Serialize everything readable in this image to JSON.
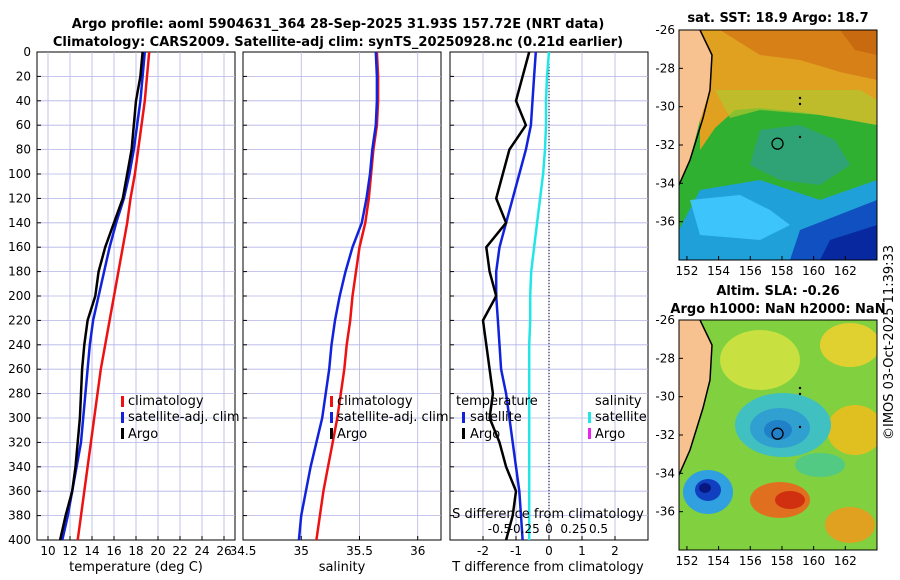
{
  "title_line1": "Argo profile: aoml 5904631_364 28-Sep-2025 31.93S 157.72E (NRT data)",
  "title_line2": "Climatology: CARS2009. Satellite-adj clim: synTS_20250928.nc (0.21d earlier)",
  "credit": "©IMOS 03-Oct-2025 11:39:33",
  "colors": {
    "climatology": "#ee1111",
    "satellite": "#1122dd",
    "argo": "#000000",
    "sat_salinity": "#22e6e6",
    "argo_salinity": "#ee22ee",
    "grid": "#b4b4e6",
    "land": "#f7c190"
  },
  "legend": {
    "climatology": "climatology",
    "satellite_clim": "satellite-adj. clim",
    "argo": "Argo",
    "temperature_hdr": "temperature",
    "salinity_hdr": "salinity",
    "satellite": "satellite",
    "argo_short": "Argo"
  },
  "map1": {
    "title": "sat. SST: 18.9 Argo: 18.7",
    "xticks": [
      "152",
      "154",
      "156",
      "158",
      "160",
      "162"
    ],
    "yticks": [
      "-26",
      "-28",
      "-30",
      "-32",
      "-34",
      "-36"
    ]
  },
  "map2": {
    "title1": "Altim. SLA: -0.26",
    "title2": "Argo h1000: NaN h2000: NaN",
    "xticks": [
      "152",
      "154",
      "156",
      "158",
      "160",
      "162"
    ],
    "yticks": [
      "-26",
      "-28",
      "-30",
      "-32",
      "-34",
      "-36"
    ]
  },
  "chart_data": [
    {
      "type": "line",
      "id": "temperature",
      "xlabel": "temperature (deg C)",
      "ylabel": "",
      "xlim": [
        9,
        27
      ],
      "ylim": [
        400,
        0
      ],
      "xticks": [
        "10",
        "12",
        "14",
        "16",
        "18",
        "20",
        "22",
        "24",
        "26"
      ],
      "yticks": [
        "0",
        "20",
        "40",
        "60",
        "80",
        "100",
        "120",
        "140",
        "160",
        "180",
        "200",
        "220",
        "240",
        "260",
        "280",
        "300",
        "320",
        "340",
        "360",
        "380",
        "400"
      ],
      "depth": [
        0,
        20,
        40,
        60,
        80,
        100,
        120,
        140,
        160,
        180,
        200,
        220,
        240,
        260,
        280,
        300,
        320,
        340,
        360,
        380,
        400
      ],
      "series": [
        {
          "name": "climatology",
          "values": [
            19.2,
            19.0,
            18.8,
            18.5,
            18.2,
            17.9,
            17.5,
            17.2,
            16.8,
            16.4,
            16.0,
            15.6,
            15.2,
            14.8,
            14.5,
            14.2,
            13.9,
            13.6,
            13.3,
            13.0,
            12.7
          ]
        },
        {
          "name": "satellite-adj. clim",
          "values": [
            18.8,
            18.6,
            18.4,
            18.1,
            17.8,
            17.4,
            16.9,
            16.2,
            15.6,
            15.1,
            14.6,
            14.1,
            13.8,
            13.6,
            13.4,
            13.2,
            13.0,
            12.6,
            12.2,
            11.8,
            11.3
          ]
        },
        {
          "name": "Argo",
          "values": [
            18.6,
            18.4,
            18.0,
            17.8,
            17.6,
            17.2,
            16.8,
            16.0,
            15.2,
            14.6,
            14.3,
            13.6,
            13.3,
            13.1,
            13.0,
            12.9,
            12.7,
            12.5,
            12.2,
            11.6,
            11.1
          ]
        }
      ]
    },
    {
      "type": "line",
      "id": "salinity",
      "xlabel": "salinity",
      "ylabel": "",
      "xlim": [
        34.5,
        36.2
      ],
      "ylim": [
        400,
        0
      ],
      "xticks": [
        "34.5",
        "35",
        "35.5",
        "36"
      ],
      "depth": [
        0,
        20,
        40,
        60,
        80,
        100,
        120,
        140,
        160,
        180,
        200,
        220,
        240,
        260,
        280,
        300,
        320,
        340,
        360,
        380,
        400
      ],
      "series": [
        {
          "name": "climatology",
          "values": [
            35.65,
            35.66,
            35.66,
            35.65,
            35.62,
            35.6,
            35.58,
            35.55,
            35.5,
            35.47,
            35.44,
            35.42,
            35.39,
            35.37,
            35.34,
            35.31,
            35.27,
            35.23,
            35.19,
            35.16,
            35.13
          ]
        },
        {
          "name": "satellite-adj. clim",
          "values": [
            35.64,
            35.65,
            35.65,
            35.64,
            35.61,
            35.59,
            35.56,
            35.52,
            35.44,
            35.38,
            35.33,
            35.29,
            35.26,
            35.24,
            35.21,
            35.18,
            35.13,
            35.08,
            35.04,
            35.0,
            34.98
          ]
        }
      ]
    },
    {
      "type": "line",
      "id": "difference",
      "xlabel": "T difference from climatology",
      "x2label": "S difference from climatology",
      "xlim": [
        -3,
        3
      ],
      "x2lim": [
        -1,
        1
      ],
      "ylim": [
        400,
        0
      ],
      "xticks": [
        "-2",
        "-1",
        "0",
        "1",
        "2"
      ],
      "x2ticks": [
        "-0.5",
        "-0.25",
        "0",
        "0.25",
        "0.5"
      ],
      "depth": [
        0,
        20,
        40,
        60,
        80,
        100,
        120,
        140,
        160,
        180,
        200,
        220,
        240,
        260,
        280,
        300,
        320,
        340,
        360,
        380,
        400
      ],
      "series": [
        {
          "name": "temperature satellite",
          "values": [
            -0.4,
            -0.45,
            -0.5,
            -0.55,
            -0.7,
            -0.9,
            -1.1,
            -1.3,
            -1.5,
            -1.6,
            -1.6,
            -1.55,
            -1.5,
            -1.45,
            -1.3,
            -1.2,
            -1.1,
            -1.0,
            -0.9,
            -0.85,
            -0.8
          ]
        },
        {
          "name": "temperature Argo",
          "values": [
            -0.6,
            -0.8,
            -1.0,
            -0.7,
            -1.2,
            -1.4,
            -1.6,
            -1.3,
            -1.9,
            -1.8,
            -1.6,
            -2.0,
            -1.9,
            -1.8,
            -1.7,
            -1.8,
            -1.5,
            -1.3,
            -1.0,
            -1.1,
            -1.3
          ]
        },
        {
          "name": "salinity satellite",
          "values": [
            0.0,
            -0.02,
            -0.03,
            -0.03,
            -0.04,
            -0.06,
            -0.09,
            -0.12,
            -0.15,
            -0.18,
            -0.19,
            -0.19,
            -0.2,
            -0.2,
            -0.2,
            -0.2,
            -0.2,
            -0.2,
            -0.2,
            -0.2,
            -0.2
          ]
        }
      ]
    },
    {
      "type": "heatmap",
      "id": "sst_map",
      "title": "sat. SST: 18.9 Argo: 18.7",
      "xlim": [
        151.5,
        164
      ],
      "ylim": [
        -38,
        -26
      ],
      "marker": [
        157.72,
        -31.93
      ]
    },
    {
      "type": "heatmap",
      "id": "sla_map",
      "title": "Altim. SLA: -0.26",
      "xlim": [
        151.5,
        164
      ],
      "ylim": [
        -38,
        -26
      ],
      "marker": [
        157.72,
        -31.93
      ]
    }
  ]
}
